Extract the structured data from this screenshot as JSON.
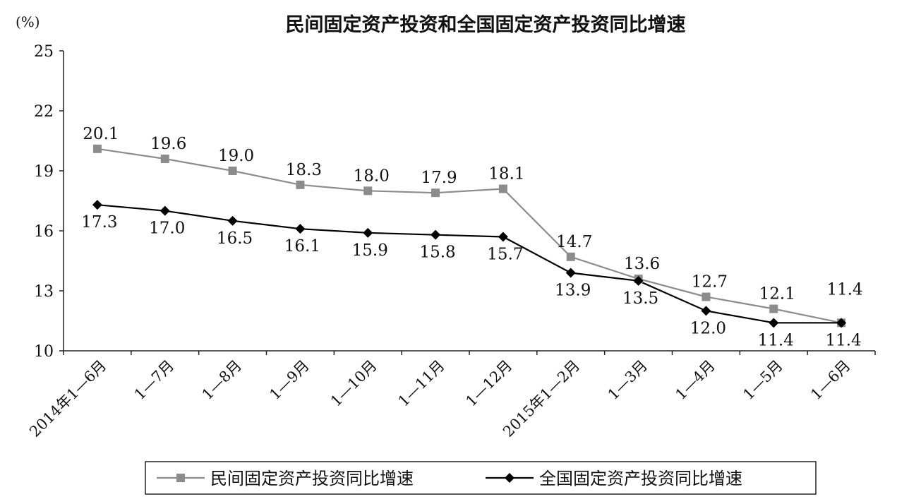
{
  "chart_data": {
    "type": "line",
    "title": "民间固定资产投资和全国固定资产投资同比增速",
    "unit_label": "(%)",
    "xlabel": "",
    "ylabel": "",
    "ylim": [
      10,
      25
    ],
    "yticks": [
      10,
      13,
      16,
      19,
      22,
      25
    ],
    "grid": false,
    "legend_position": "bottom",
    "categories": [
      "2014年1—6月",
      "1—7月",
      "1—8月",
      "1—9月",
      "1—10月",
      "1—11月",
      "1—12月",
      "2015年1—2月",
      "1—3月",
      "1—4月",
      "1—5月",
      "1—6月"
    ],
    "series": [
      {
        "name": "民间固定资产投资同比增速",
        "marker": "square",
        "color": "#8c8c8c",
        "values": [
          20.1,
          19.6,
          19.0,
          18.3,
          18.0,
          17.9,
          18.1,
          14.7,
          13.6,
          12.7,
          12.1,
          11.4
        ],
        "labels": [
          "20.1",
          "19.6",
          "19.0",
          "18.3",
          "18.0",
          "17.9",
          "18.1",
          "14.7",
          "13.6",
          "12.7",
          "12.1",
          "11.4"
        ]
      },
      {
        "name": "全国固定资产投资同比增速",
        "marker": "diamond",
        "color": "#000000",
        "values": [
          17.3,
          17.0,
          16.5,
          16.1,
          15.9,
          15.8,
          15.7,
          13.9,
          13.5,
          12.0,
          11.4,
          11.4
        ],
        "labels": [
          "17.3",
          "17.0",
          "16.5",
          "16.1",
          "15.9",
          "15.8",
          "15.7",
          "13.9",
          "13.5",
          "12.0",
          "11.4",
          "11.4"
        ]
      }
    ]
  }
}
